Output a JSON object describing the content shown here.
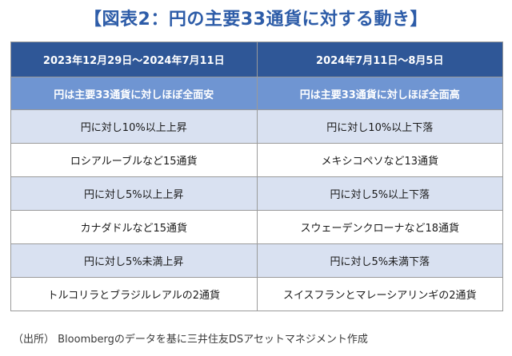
{
  "title": "【図表2：円の主要33通貨に対する動き】",
  "table": {
    "period_headers": [
      "2023年12月29日～2024年7月11日",
      "2024年7月11日～8月5日"
    ],
    "summary_headers": [
      "円は主要33通貨に対しほぼ全面安",
      "円は主要33通貨に対しほぼ全面高"
    ],
    "rows": [
      [
        "円に対し10%以上上昇",
        "円に対し10%以上下落"
      ],
      [
        "ロシアルーブルなど15通貨",
        "メキシコペソなど13通貨"
      ],
      [
        "円に対し5%以上上昇",
        "円に対し5%以上下落"
      ],
      [
        "カナダドルなど15通貨",
        "スウェーデンクローナなど18通貨"
      ],
      [
        "円に対し5%未満上昇",
        "円に対し5%未満下落"
      ],
      [
        "トルコリラとブラジルレアルの2通貨",
        "スイスフランとマレーシアリンギの2通貨"
      ]
    ]
  },
  "source": "（出所） Bloombergのデータを基に三井住友DSアセットマネジメント作成",
  "colors": {
    "title": "#2d5ca8",
    "header_dark": "#2f5797",
    "header_light": "#6f95d2",
    "row_shade": "#d9e1f1"
  }
}
